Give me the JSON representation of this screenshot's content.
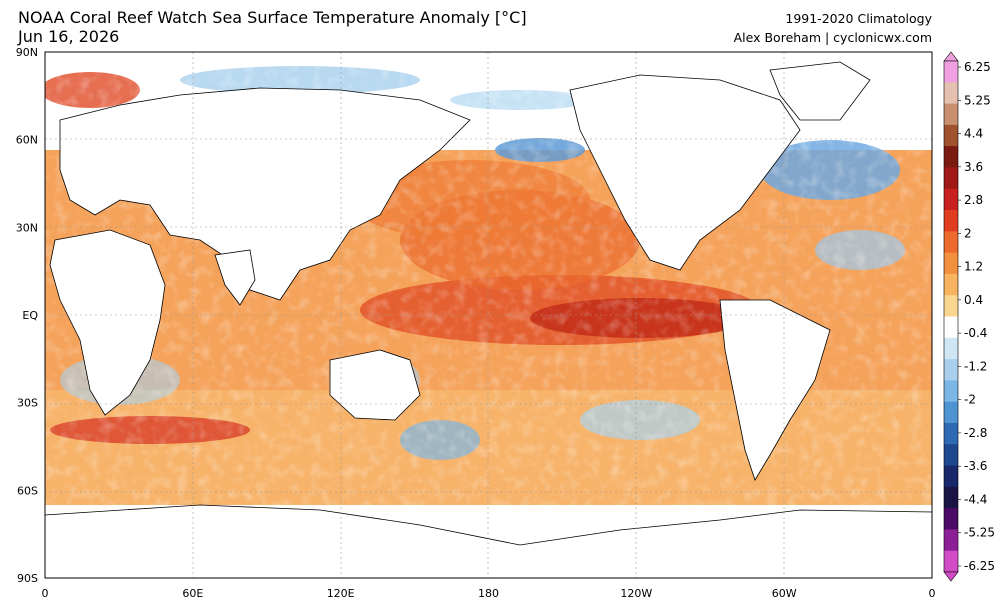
{
  "header": {
    "title": "NOAA Coral Reef Watch Sea Surface Temperature Anomaly [°C]",
    "date": "Jun 16, 2026",
    "climatology": "1991-2020 Climatology",
    "credit": "Alex Boreham | cyclonicwx.com"
  },
  "axes": {
    "lat_labels": [
      "90N",
      "60N",
      "30N",
      "EQ",
      "30S",
      "60S",
      "90S"
    ],
    "lon_labels": [
      "0",
      "60E",
      "120E",
      "180",
      "120W",
      "60W",
      "0"
    ]
  },
  "colorbar": {
    "labels": [
      "6.25",
      "5.25",
      "4.4",
      "3.6",
      "2.8",
      "2",
      "1.2",
      "0.4",
      "-0.4",
      "-1.2",
      "-2",
      "-2.8",
      "-3.6",
      "-4.4",
      "-5.25",
      "-6.25"
    ],
    "colors": [
      "#f0a0e0",
      "#e4c0b0",
      "#c89070",
      "#a0522d",
      "#7a1a10",
      "#a01818",
      "#c82020",
      "#e03c20",
      "#ee6a2c",
      "#f39040",
      "#f7b360",
      "#fad690",
      "#ffffff",
      "#cfe6f5",
      "#a8d0ee",
      "#7ab6e6",
      "#4f94d2",
      "#2e6ab4",
      "#1d478f",
      "#16286a",
      "#1a1446",
      "#4a0a66",
      "#8c1e96",
      "#d24cc8"
    ]
  },
  "colors": {
    "land": "#ffffff",
    "warm": "#ef7a33",
    "hot": "#c8321c",
    "cool": "#7ab6e6"
  }
}
